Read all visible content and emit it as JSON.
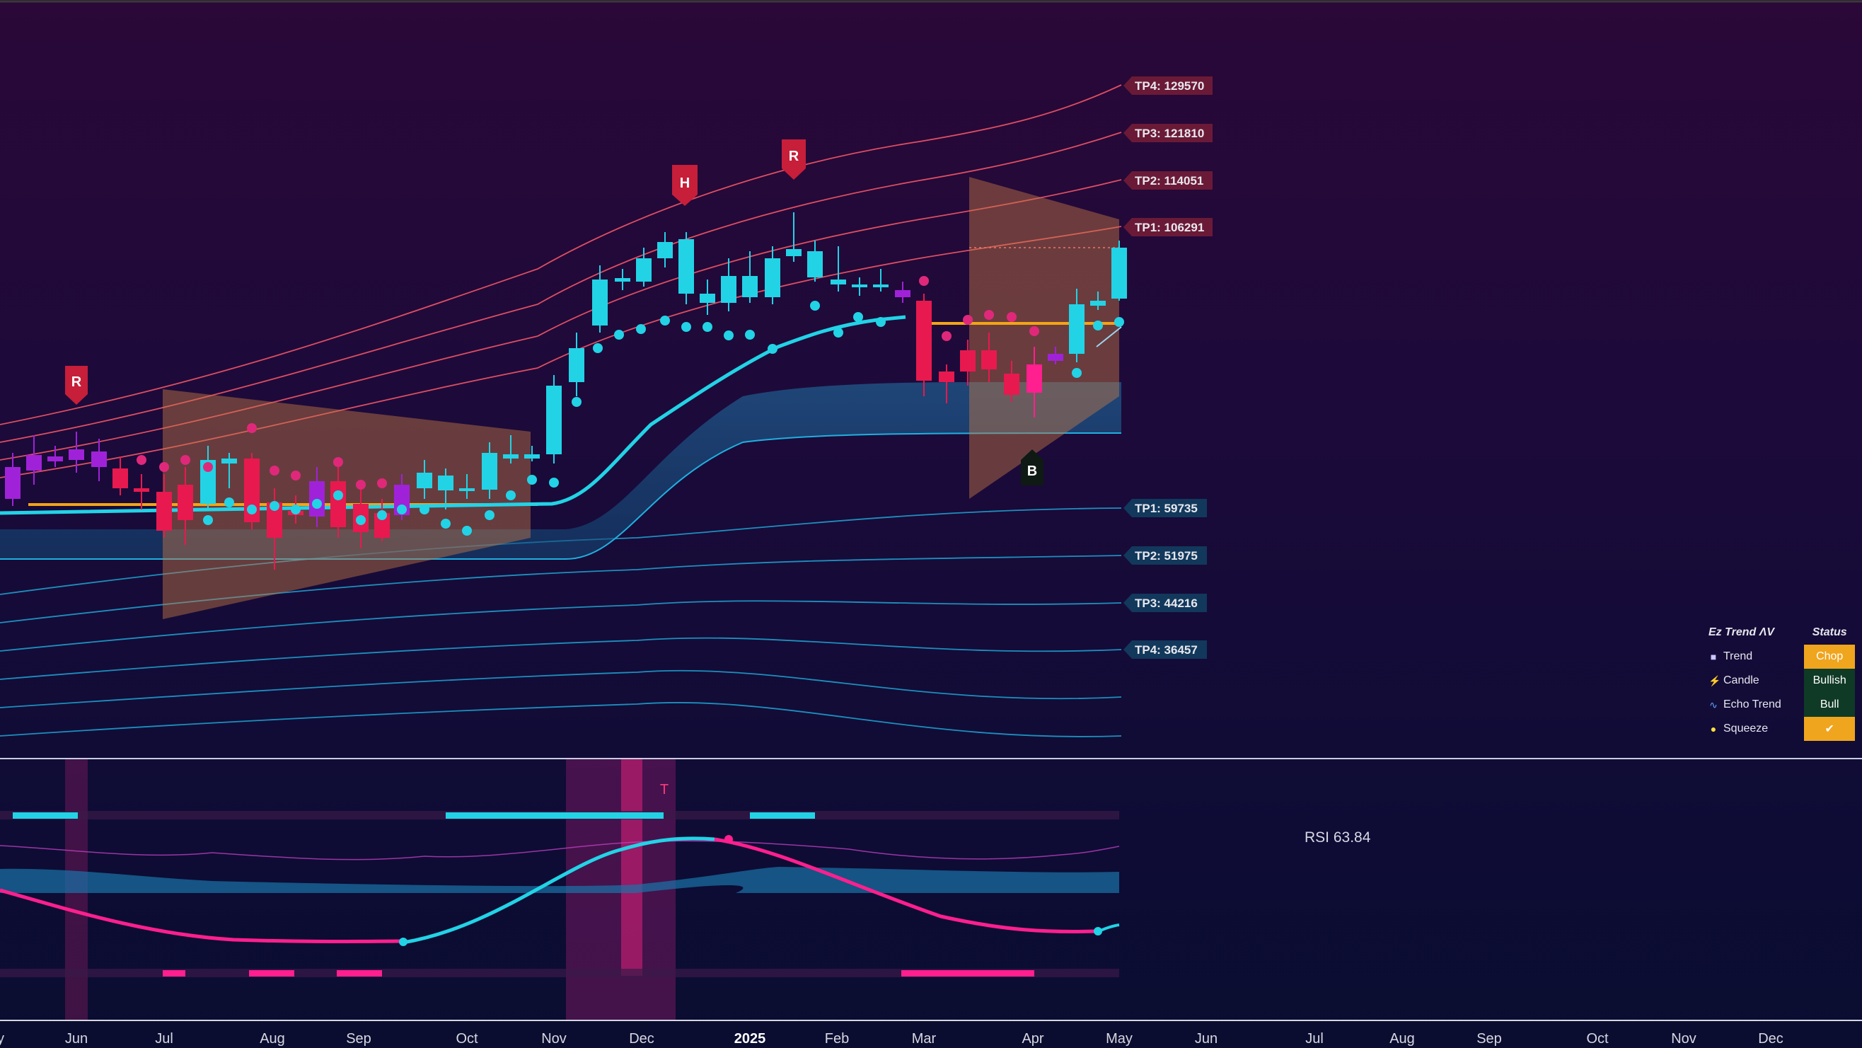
{
  "tp_upper": [
    {
      "label": "TP4: 129570"
    },
    {
      "label": "TP3: 121810"
    },
    {
      "label": "TP2: 114051"
    },
    {
      "label": "TP1: 106291"
    }
  ],
  "tp_lower": [
    {
      "label": "TP1: 59735"
    },
    {
      "label": "TP2: 51975"
    },
    {
      "label": "TP3: 44216"
    },
    {
      "label": "TP4: 36457"
    }
  ],
  "signals": [
    {
      "text": "R"
    },
    {
      "text": "H"
    },
    {
      "text": "R"
    },
    {
      "text": "B"
    }
  ],
  "oscillator": {
    "marker": "T",
    "rsi_label": "RSI  63.84"
  },
  "x_axis": [
    "y",
    "Jun",
    "Jul",
    "Aug",
    "Sep",
    "Oct",
    "Nov",
    "Dec",
    "2025",
    "Feb",
    "Mar",
    "Apr",
    "May",
    "Jun",
    "Jul",
    "Aug",
    "Sep",
    "Oct",
    "Nov",
    "Dec"
  ],
  "status_table": {
    "title": "Ez Trend ΛV",
    "status_header": "Status",
    "rows": [
      {
        "icon": "square-icon",
        "label": "Trend",
        "value": "Chop",
        "color": "#f0a51e"
      },
      {
        "icon": "bolt-icon",
        "label": "Candle",
        "value": "Bullish",
        "color": "#0f3a26"
      },
      {
        "icon": "wave-icon",
        "label": "Echo Trend",
        "value": "Bull",
        "color": "#0f3a26"
      },
      {
        "icon": "lemon-icon",
        "label": "Squeeze",
        "value": "✔",
        "color": "#f0a51e"
      }
    ]
  },
  "colors": {
    "bull": "#22d3e6",
    "bear": "#e8194e",
    "neutral": "#a022d8",
    "upper_band": "#ff5a6a",
    "lower_band": "#1fb0e0",
    "baseline": "#f2a516",
    "magenta": "#ff1f8e"
  }
}
